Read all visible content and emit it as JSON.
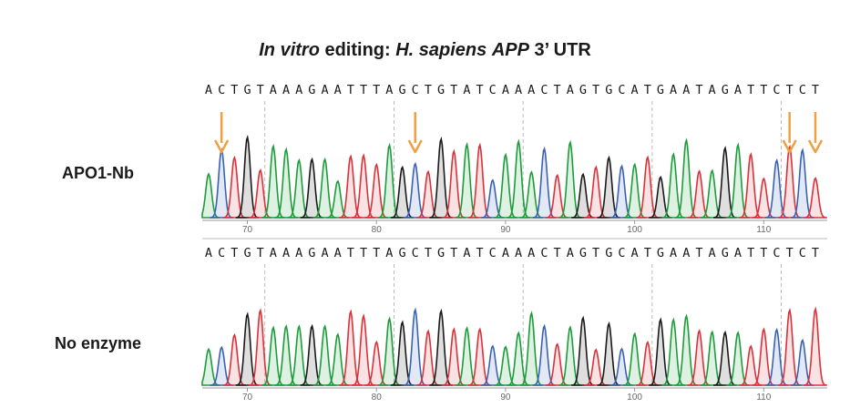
{
  "title": {
    "part1": "In vitro",
    "part2": " editing: ",
    "part3": "H. sapiens",
    "part4": " ",
    "part5": "APP",
    "part6": " 3’ UTR"
  },
  "colors": {
    "A": "#1c9c3a",
    "C": "#3a62b4",
    "G": "#1a1a1a",
    "T": "#d8323a",
    "arrow": "#f0a040",
    "guide": "#aaaaaa"
  },
  "chart_data": {
    "type": "chromatogram",
    "position_ticks": [
      70,
      80,
      90,
      100,
      110
    ],
    "panels": [
      {
        "label": "APO1-Nb",
        "sequence": "ACTGTAAAGAATTTAGCTGTATCAAACTAGTGCATGAATAGATTCTCT",
        "arrow_bases": [
          1,
          16,
          45,
          47
        ]
      },
      {
        "label": "No enzyme",
        "sequence": "ACTGTAAAGAATTTAGCTGTATCAAACTAGTGCATGAATAGATTCTCT",
        "arrow_bases": []
      }
    ]
  }
}
